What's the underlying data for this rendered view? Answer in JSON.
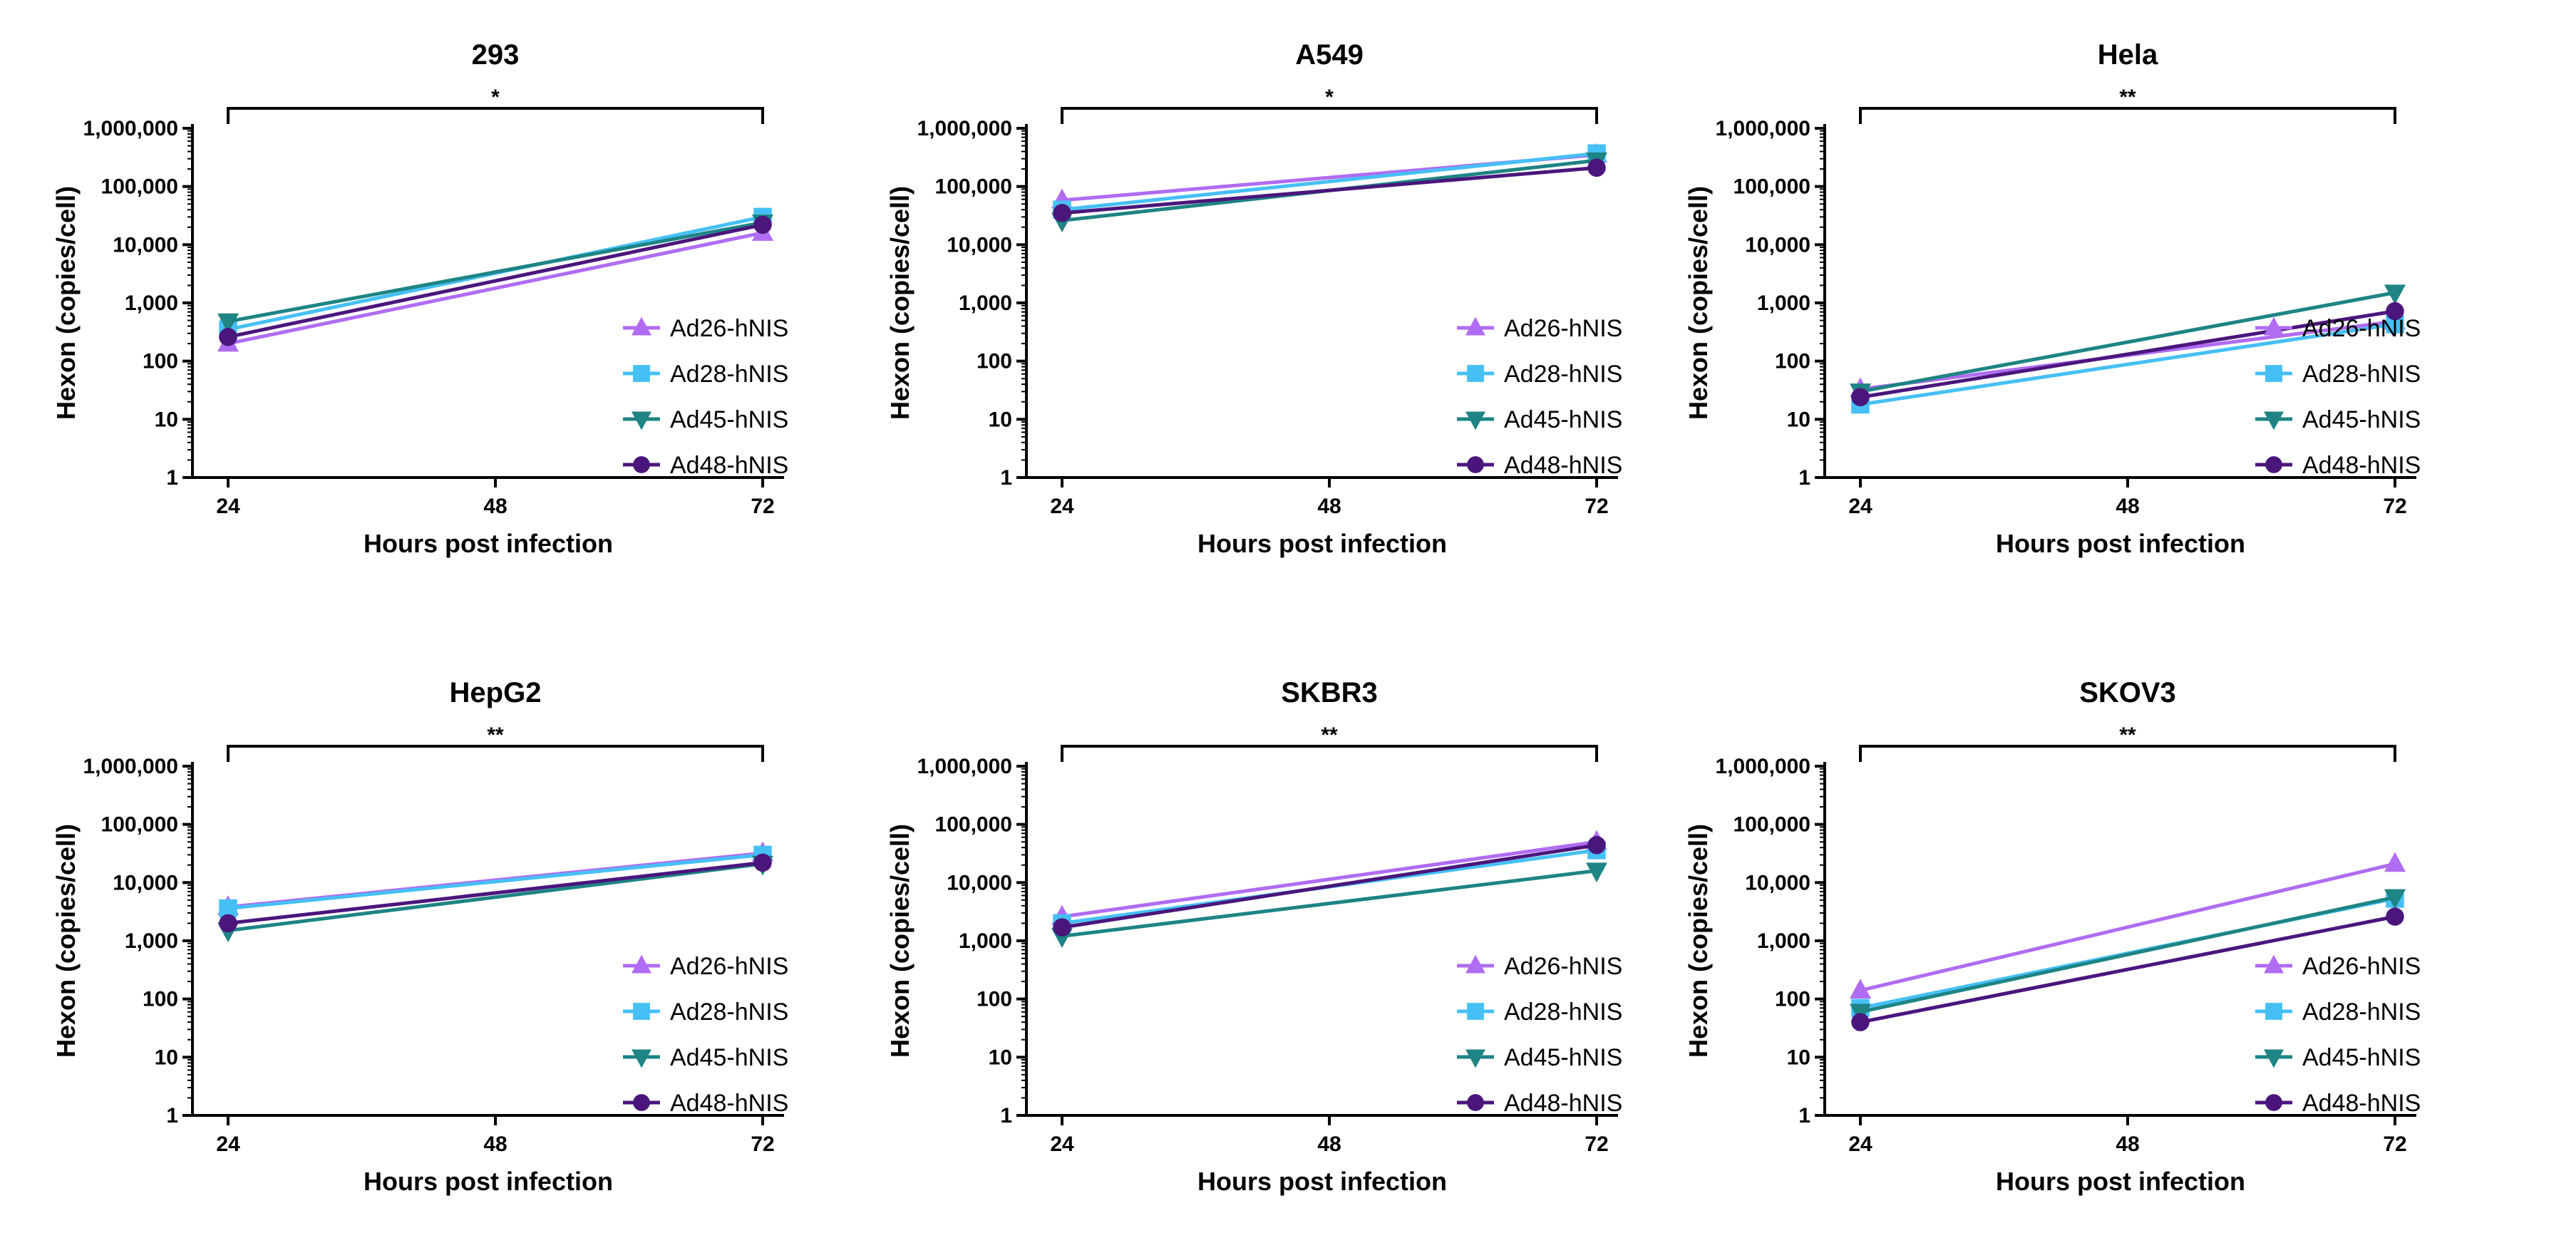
{
  "colors": {
    "Ad26-hNIS": "#b06cf2",
    "Ad28-hNIS": "#45c0f5",
    "Ad45-hNIS": "#1e8484",
    "Ad48-hNIS": "#4a167c"
  },
  "markers": {
    "Ad26-hNIS": "triangle-up",
    "Ad28-hNIS": "square",
    "Ad45-hNIS": "triangle-down",
    "Ad48-hNIS": "circle"
  },
  "chart_data": [
    {
      "type": "line",
      "title": "293",
      "xlabel": "Hours post infection",
      "ylabel": "Hexon (copies/cell)",
      "yscale": "log",
      "ylim": [
        1,
        1000000
      ],
      "yticks": [
        "1",
        "10",
        "100",
        "1,000",
        "10,000",
        "100,000",
        "1,000,000"
      ],
      "xlim": [
        24,
        72
      ],
      "xticks": [
        "24",
        "48",
        "72"
      ],
      "x": [
        24,
        72
      ],
      "legend_position": "right",
      "significance": {
        "label": "*",
        "from": 24,
        "to": 72
      },
      "series": [
        {
          "name": "Ad26-hNIS",
          "values": [
            200,
            16000
          ]
        },
        {
          "name": "Ad28-hNIS",
          "values": [
            350,
            30000
          ]
        },
        {
          "name": "Ad45-hNIS",
          "values": [
            480,
            24000
          ]
        },
        {
          "name": "Ad48-hNIS",
          "values": [
            260,
            22000
          ]
        }
      ]
    },
    {
      "type": "line",
      "title": "A549",
      "xlabel": "Hours post infection",
      "ylabel": "Hexon (copies/cell)",
      "yscale": "log",
      "ylim": [
        1,
        1000000
      ],
      "yticks": [
        "1",
        "10",
        "100",
        "1,000",
        "10,000",
        "100,000",
        "1,000,000"
      ],
      "xlim": [
        24,
        72
      ],
      "xticks": [
        "24",
        "48",
        "72"
      ],
      "x": [
        24,
        72
      ],
      "legend_position": "right",
      "significance": {
        "label": "*",
        "from": 24,
        "to": 72
      },
      "series": [
        {
          "name": "Ad26-hNIS",
          "values": [
            58000,
            350000
          ]
        },
        {
          "name": "Ad28-hNIS",
          "values": [
            40000,
            370000
          ]
        },
        {
          "name": "Ad45-hNIS",
          "values": [
            26000,
            280000
          ]
        },
        {
          "name": "Ad48-hNIS",
          "values": [
            35000,
            210000
          ]
        }
      ]
    },
    {
      "type": "line",
      "title": "Hela",
      "xlabel": "Hours post infection",
      "ylabel": "Hexon (copies/cell)",
      "yscale": "log",
      "ylim": [
        1,
        1000000
      ],
      "yticks": [
        "1",
        "10",
        "100",
        "1,000",
        "10,000",
        "100,000",
        "1,000,000"
      ],
      "xlim": [
        24,
        72
      ],
      "xticks": [
        "24",
        "48",
        "72"
      ],
      "x": [
        24,
        72
      ],
      "legend_position": "right",
      "significance": {
        "label": "**",
        "from": 24,
        "to": 72
      },
      "series": [
        {
          "name": "Ad26-hNIS",
          "values": [
            33,
            480
          ]
        },
        {
          "name": "Ad28-hNIS",
          "values": [
            18,
            430
          ]
        },
        {
          "name": "Ad45-hNIS",
          "values": [
            30,
            1500
          ]
        },
        {
          "name": "Ad48-hNIS",
          "values": [
            24,
            720
          ]
        }
      ]
    },
    {
      "type": "line",
      "title": "HepG2",
      "xlabel": "Hours post infection",
      "ylabel": "Hexon (copies/cell)",
      "yscale": "log",
      "ylim": [
        1,
        1000000
      ],
      "yticks": [
        "1",
        "10",
        "100",
        "1,000",
        "10,000",
        "100,000",
        "1,000,000"
      ],
      "xlim": [
        24,
        72
      ],
      "xticks": [
        "24",
        "48",
        "72"
      ],
      "x": [
        24,
        72
      ],
      "legend_position": "right",
      "significance": {
        "label": "**",
        "from": 24,
        "to": 72
      },
      "series": [
        {
          "name": "Ad26-hNIS",
          "values": [
            3800,
            32000
          ]
        },
        {
          "name": "Ad28-hNIS",
          "values": [
            3600,
            30000
          ]
        },
        {
          "name": "Ad45-hNIS",
          "values": [
            1500,
            21000
          ]
        },
        {
          "name": "Ad48-hNIS",
          "values": [
            2000,
            22000
          ]
        }
      ]
    },
    {
      "type": "line",
      "title": "SKBR3",
      "xlabel": "Hours post infection",
      "ylabel": "Hexon (copies/cell)",
      "yscale": "log",
      "ylim": [
        1,
        1000000
      ],
      "yticks": [
        "1",
        "10",
        "100",
        "1,000",
        "10,000",
        "100,000",
        "1,000,000"
      ],
      "xlim": [
        24,
        72
      ],
      "xticks": [
        "24",
        "48",
        "72"
      ],
      "x": [
        24,
        72
      ],
      "legend_position": "right",
      "significance": {
        "label": "**",
        "from": 24,
        "to": 72
      },
      "series": [
        {
          "name": "Ad26-hNIS",
          "values": [
            2600,
            50000
          ]
        },
        {
          "name": "Ad28-hNIS",
          "values": [
            2000,
            36000
          ]
        },
        {
          "name": "Ad45-hNIS",
          "values": [
            1200,
            16000
          ]
        },
        {
          "name": "Ad48-hNIS",
          "values": [
            1700,
            44000
          ]
        }
      ]
    },
    {
      "type": "line",
      "title": "SKOV3",
      "xlabel": "Hours post infection",
      "ylabel": "Hexon (copies/cell)",
      "yscale": "log",
      "ylim": [
        1,
        1000000
      ],
      "yticks": [
        "1",
        "10",
        "100",
        "1,000",
        "10,000",
        "100,000",
        "1,000,000"
      ],
      "xlim": [
        24,
        72
      ],
      "xticks": [
        "24",
        "48",
        "72"
      ],
      "x": [
        24,
        72
      ],
      "legend_position": "right",
      "significance": {
        "label": "**",
        "from": 24,
        "to": 72
      },
      "series": [
        {
          "name": "Ad26-hNIS",
          "values": [
            140,
            21000
          ]
        },
        {
          "name": "Ad28-hNIS",
          "values": [
            70,
            5300
          ]
        },
        {
          "name": "Ad45-hNIS",
          "values": [
            60,
            5600
          ]
        },
        {
          "name": "Ad48-hNIS",
          "values": [
            40,
            2600
          ]
        }
      ]
    }
  ]
}
